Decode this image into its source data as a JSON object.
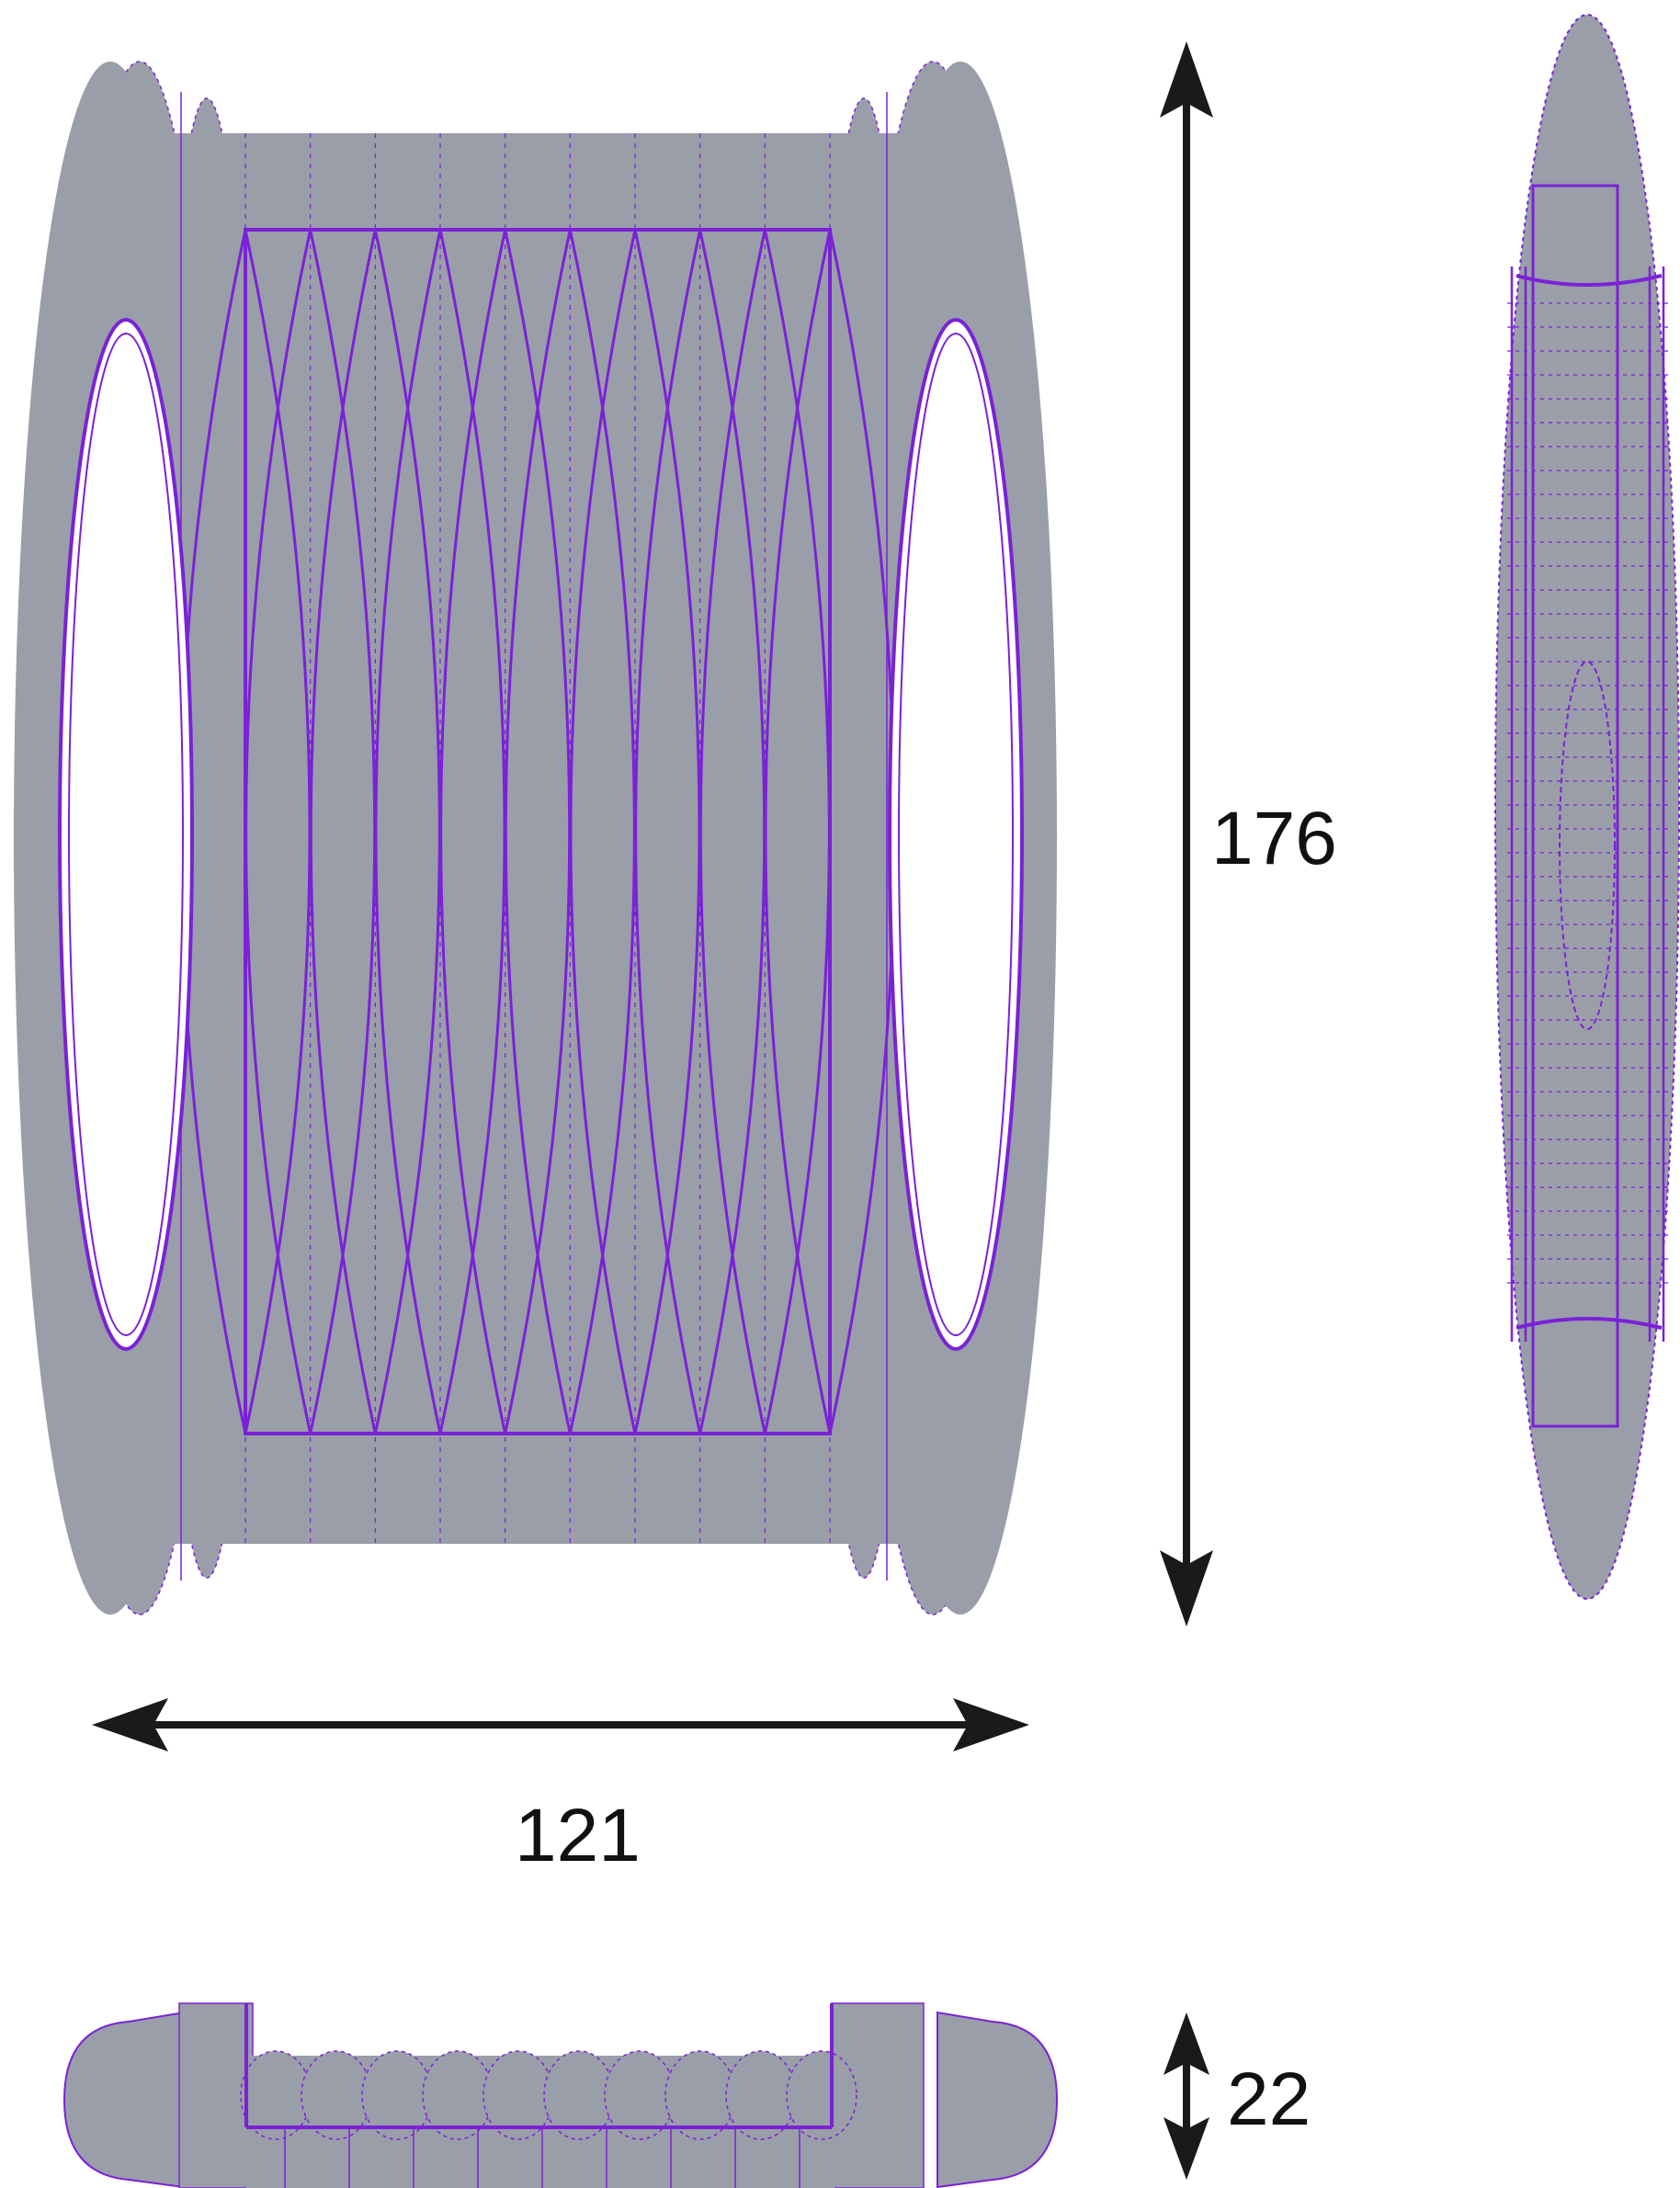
{
  "dimensions": {
    "height": "176",
    "width": "121",
    "depth": "22"
  },
  "colors": {
    "body": "#9a9ea8",
    "wire": "#7a22d6",
    "arrow": "#1a1a1a",
    "hole": "#ffffff"
  },
  "views": [
    "front-view",
    "side-view",
    "bottom-view"
  ]
}
